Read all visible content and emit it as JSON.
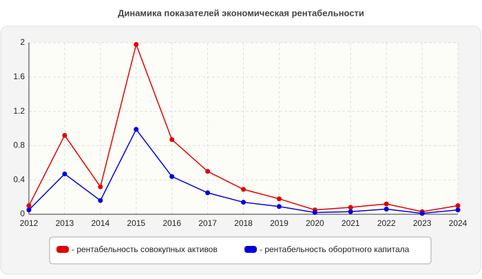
{
  "chart_data": {
    "type": "line",
    "title": "Динамика показателей экономическая рентабельности",
    "x": [
      2012,
      2013,
      2014,
      2015,
      2016,
      2017,
      2018,
      2019,
      2020,
      2021,
      2022,
      2023,
      2024
    ],
    "xlim": [
      2012,
      2024
    ],
    "xticks": [
      2012,
      2013,
      2014,
      2015,
      2016,
      2017,
      2018,
      2019,
      2020,
      2021,
      2022,
      2023,
      2024
    ],
    "ylim": [
      0,
      2
    ],
    "yticks": [
      0,
      0.4,
      0.8,
      1.2,
      1.6,
      2
    ],
    "grid": true,
    "series": [
      {
        "name": "- рентабельность совокупных активов",
        "color": "#e00000",
        "values": [
          0.1,
          0.92,
          0.32,
          1.98,
          0.87,
          0.5,
          0.29,
          0.18,
          0.05,
          0.08,
          0.12,
          0.03,
          0.1
        ]
      },
      {
        "name": "- рентабельность оборотного капитала",
        "color": "#0000dd",
        "values": [
          0.05,
          0.47,
          0.16,
          0.99,
          0.44,
          0.25,
          0.14,
          0.09,
          0.02,
          0.03,
          0.06,
          0.01,
          0.05
        ]
      }
    ]
  }
}
